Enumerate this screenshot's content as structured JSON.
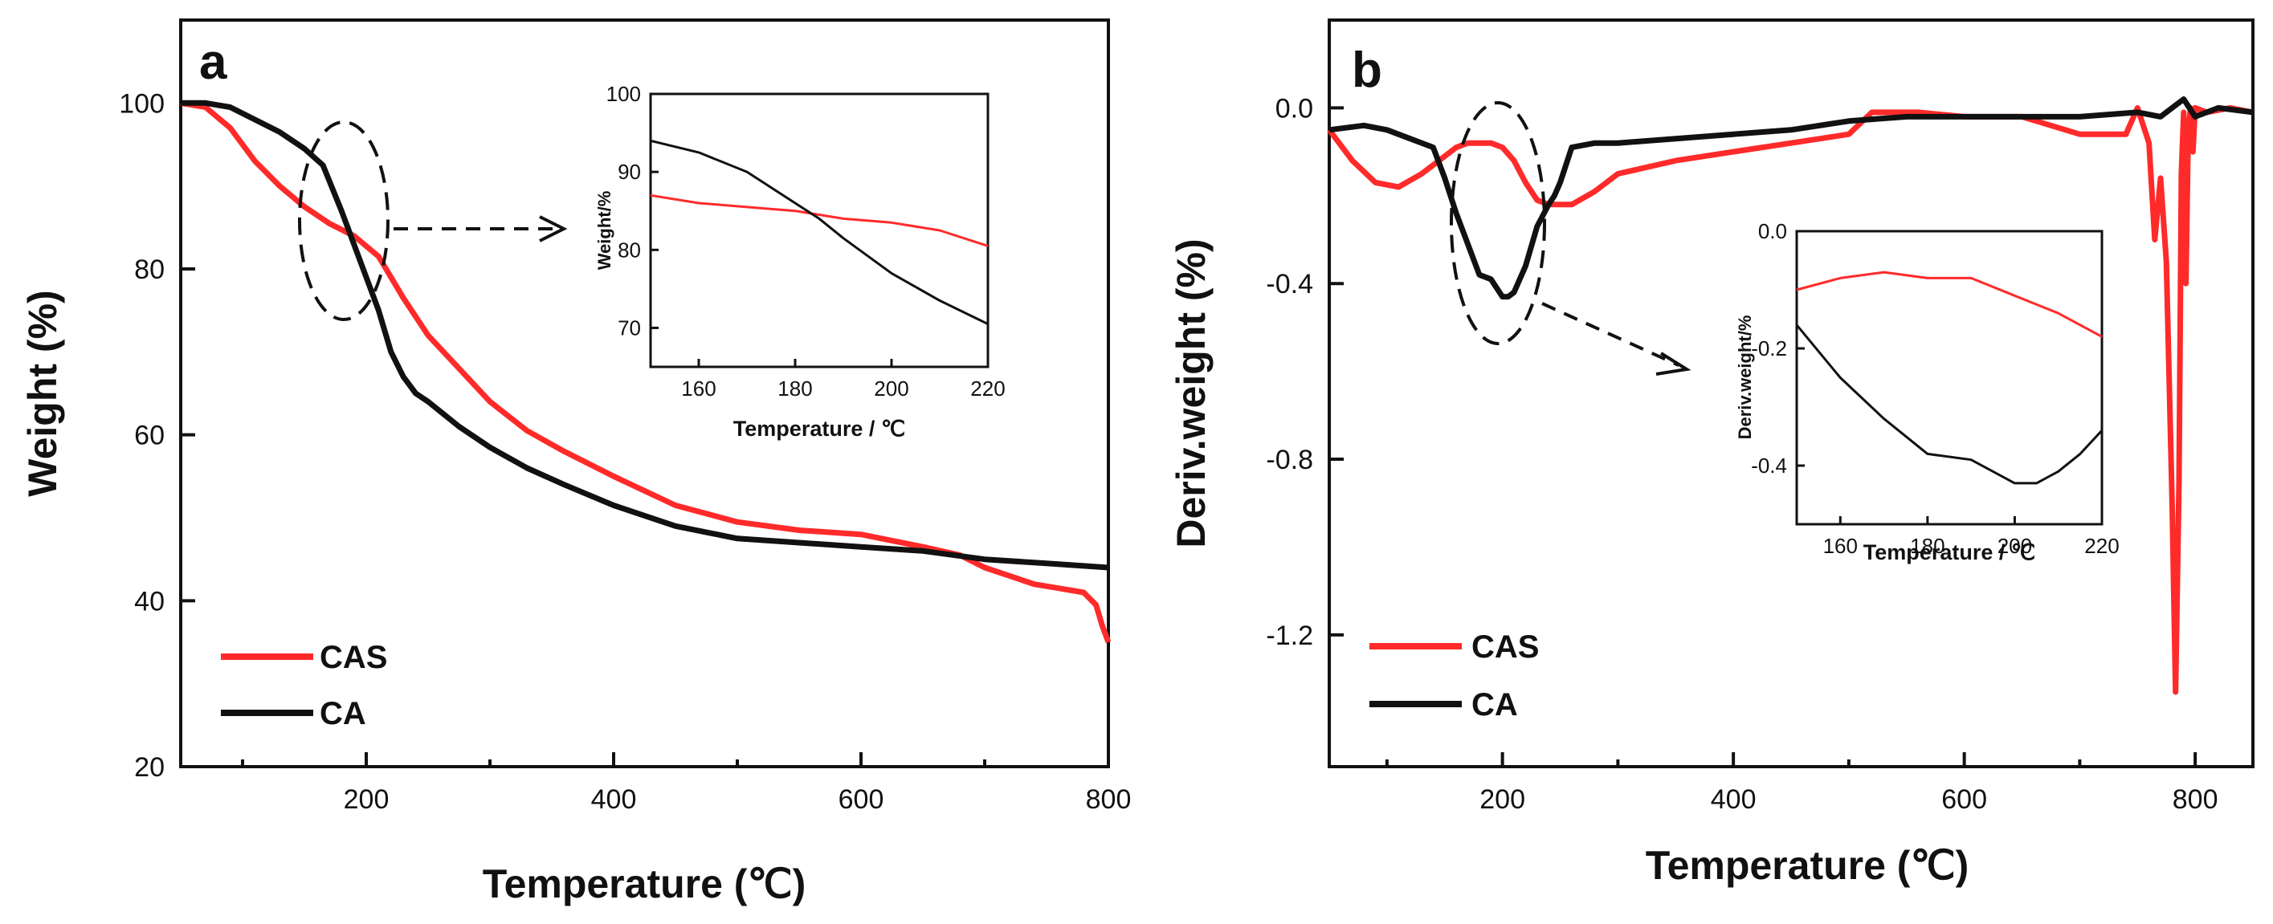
{
  "colors": {
    "CAS": "#ff2a2a",
    "CA": "#111111"
  },
  "chart_data": [
    {
      "id": "a",
      "type": "line",
      "panel_label": "a",
      "xlabel": "Temperature (℃)",
      "ylabel": "Weight (%)",
      "xlim": [
        50,
        800
      ],
      "ylim": [
        20,
        110
      ],
      "xticks": [
        200,
        400,
        600,
        800
      ],
      "yticks": [
        20,
        40,
        60,
        80,
        100
      ],
      "legend": [
        "CAS",
        "CA"
      ],
      "legend_position": "bottom-left",
      "series": [
        {
          "name": "CAS",
          "x": [
            50,
            70,
            90,
            110,
            130,
            150,
            170,
            190,
            210,
            230,
            250,
            275,
            300,
            330,
            360,
            400,
            450,
            500,
            550,
            600,
            650,
            680,
            700,
            720,
            740,
            760,
            780,
            790,
            795,
            800
          ],
          "y": [
            100,
            99.5,
            97,
            93,
            90,
            87.5,
            85.5,
            84,
            81.5,
            76.5,
            72,
            68,
            64,
            60.5,
            58,
            55,
            51.5,
            49.5,
            48.5,
            48,
            46.5,
            45.5,
            44,
            43,
            42,
            41.5,
            41,
            39.5,
            37,
            35
          ]
        },
        {
          "name": "CA",
          "x": [
            50,
            70,
            90,
            110,
            130,
            150,
            165,
            180,
            190,
            200,
            210,
            220,
            230,
            240,
            250,
            275,
            300,
            330,
            360,
            400,
            450,
            500,
            550,
            600,
            650,
            700,
            750,
            800
          ],
          "y": [
            100,
            100,
            99.5,
            98,
            96.5,
            94.5,
            92.5,
            87,
            83,
            79,
            75,
            70,
            67,
            65,
            64,
            61,
            58.5,
            56,
            54,
            51.5,
            49,
            47.5,
            47,
            46.5,
            46,
            45,
            44.5,
            44
          ]
        }
      ],
      "annotation": "dashed ellipse around 150–200 ℃ with arrow to inset",
      "inset": {
        "type": "line",
        "xlabel": "Temperature / ℃",
        "ylabel": "Weight/%",
        "xlim": [
          150,
          220
        ],
        "ylim": [
          65,
          100
        ],
        "xticks": [
          160,
          180,
          200,
          220
        ],
        "yticks": [
          70,
          80,
          90,
          100
        ],
        "series": [
          {
            "name": "CAS",
            "x": [
              150,
              160,
              170,
              180,
              190,
              200,
              210,
              220
            ],
            "y": [
              87,
              86,
              85.5,
              85,
              84,
              83.5,
              82.5,
              80.5
            ]
          },
          {
            "name": "CA",
            "x": [
              150,
              160,
              170,
              180,
              185,
              190,
              200,
              210,
              220
            ],
            "y": [
              94,
              92.5,
              90,
              86,
              84,
              81.5,
              77,
              73.5,
              70.5
            ]
          }
        ]
      }
    },
    {
      "id": "b",
      "type": "line",
      "panel_label": "b",
      "xlabel": "Temperature (℃)",
      "ylabel": "Deriv.weight (%)",
      "xlim": [
        50,
        850
      ],
      "ylim": [
        -1.5,
        0.2
      ],
      "xticks": [
        200,
        400,
        600,
        800
      ],
      "yticks": [
        -1.2,
        -0.8,
        -0.4,
        0.0
      ],
      "ytick_labels": [
        "-1.2",
        "-0.8",
        "-0.4",
        "0.0"
      ],
      "legend": [
        "CAS",
        "CA"
      ],
      "legend_position": "bottom-left",
      "series": [
        {
          "name": "CAS",
          "x": [
            50,
            70,
            90,
            110,
            130,
            150,
            160,
            170,
            180,
            190,
            200,
            210,
            220,
            230,
            240,
            260,
            280,
            300,
            350,
            400,
            450,
            500,
            520,
            560,
            600,
            650,
            700,
            740,
            750,
            760,
            765,
            770,
            775,
            780,
            783,
            786,
            788,
            790,
            792,
            794,
            796,
            798,
            800,
            810,
            830,
            850
          ],
          "y": [
            -0.05,
            -0.12,
            -0.17,
            -0.18,
            -0.15,
            -0.11,
            -0.09,
            -0.08,
            -0.08,
            -0.08,
            -0.09,
            -0.12,
            -0.17,
            -0.21,
            -0.22,
            -0.22,
            -0.19,
            -0.15,
            -0.12,
            -0.1,
            -0.08,
            -0.06,
            -0.01,
            -0.01,
            -0.02,
            -0.02,
            -0.06,
            -0.06,
            0.0,
            -0.08,
            -0.3,
            -0.16,
            -0.35,
            -0.9,
            -1.33,
            -0.85,
            -0.15,
            -0.01,
            -0.4,
            -0.05,
            0.0,
            -0.1,
            0.0,
            -0.01,
            0.0,
            -0.01
          ]
        },
        {
          "name": "CA",
          "x": [
            50,
            80,
            100,
            120,
            140,
            150,
            160,
            170,
            180,
            190,
            200,
            205,
            210,
            220,
            230,
            240,
            245,
            250,
            260,
            280,
            300,
            350,
            400,
            450,
            500,
            550,
            600,
            650,
            700,
            750,
            770,
            780,
            790,
            800,
            820,
            850
          ],
          "y": [
            -0.05,
            -0.04,
            -0.05,
            -0.07,
            -0.09,
            -0.16,
            -0.24,
            -0.31,
            -0.38,
            -0.39,
            -0.43,
            -0.43,
            -0.42,
            -0.36,
            -0.27,
            -0.22,
            -0.2,
            -0.17,
            -0.09,
            -0.08,
            -0.08,
            -0.07,
            -0.06,
            -0.05,
            -0.03,
            -0.02,
            -0.02,
            -0.02,
            -0.02,
            -0.01,
            -0.02,
            0.0,
            0.02,
            -0.02,
            0.0,
            -0.01
          ]
        }
      ],
      "annotation": "dashed ellipse around 160–240 ℃ with arrow to inset",
      "inset": {
        "type": "line",
        "xlabel": "Temperature / ℃",
        "ylabel": "Deriv.weight/%",
        "xlim": [
          150,
          220
        ],
        "ylim": [
          -0.5,
          0.0
        ],
        "xticks": [
          160,
          180,
          200,
          220
        ],
        "yticks": [
          -0.4,
          -0.2,
          0.0
        ],
        "ytick_labels": [
          "-0.4",
          "-0.2",
          "0.0"
        ],
        "series": [
          {
            "name": "CAS",
            "x": [
              150,
              160,
              170,
              180,
              190,
              200,
              210,
              220
            ],
            "y": [
              -0.1,
              -0.08,
              -0.07,
              -0.08,
              -0.08,
              -0.11,
              -0.14,
              -0.18
            ]
          },
          {
            "name": "CA",
            "x": [
              150,
              160,
              170,
              180,
              190,
              195,
              200,
              205,
              210,
              215,
              220
            ],
            "y": [
              -0.16,
              -0.25,
              -0.32,
              -0.38,
              -0.39,
              -0.41,
              -0.43,
              -0.43,
              -0.41,
              -0.38,
              -0.34
            ]
          }
        ]
      }
    }
  ]
}
